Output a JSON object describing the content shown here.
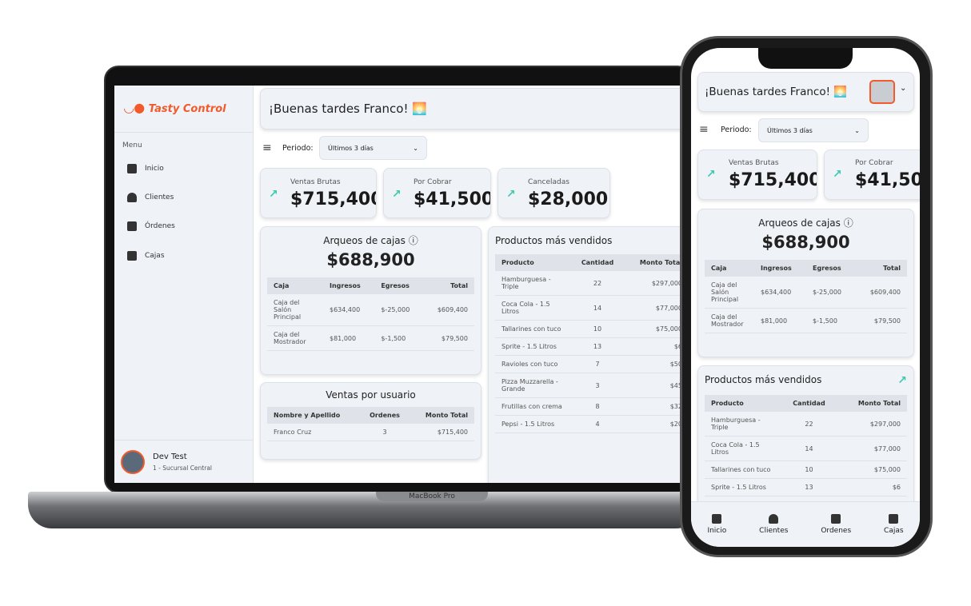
{
  "app": {
    "brand": "Tasty Control",
    "greeting": "¡Buenas tardes Franco! 🌅",
    "accent": "#f25a2b",
    "trend_color": "#3cc9b0"
  },
  "sidebar": {
    "menu_label": "Menu",
    "items": [
      {
        "label": "Inicio",
        "icon": "dashboard-icon"
      },
      {
        "label": "Clientes",
        "icon": "person-icon"
      },
      {
        "label": "Órdenes",
        "icon": "orders-icon"
      },
      {
        "label": "Cajas",
        "icon": "cash-register-icon"
      }
    ],
    "user": {
      "name": "Dev Test",
      "branch": "1 - Sucursal Central"
    }
  },
  "filter": {
    "label": "Periodo:",
    "value": "Últimos 3 días"
  },
  "stats": [
    {
      "label": "Ventas Brutas",
      "value": "$715,400"
    },
    {
      "label": "Por Cobrar",
      "value": "$41,500"
    },
    {
      "label": "Canceladas",
      "value": "$28,000"
    }
  ],
  "arqueos": {
    "title": "Arqueos de cajas",
    "total": "$688,900",
    "headers": [
      "Caja",
      "Ingresos",
      "Egresos",
      "Total"
    ],
    "rows": [
      [
        "Caja del Salón Principal",
        "$634,400",
        "$-25,000",
        "$609,400"
      ],
      [
        "Caja del Mostrador",
        "$81,000",
        "$-1,500",
        "$79,500"
      ]
    ]
  },
  "ventas_usuario": {
    "title": "Ventas por usuario",
    "headers": [
      "Nombre y Apellido",
      "Ordenes",
      "Monto Total"
    ],
    "rows": [
      [
        "Franco Cruz",
        "3",
        "$715,400"
      ]
    ]
  },
  "productos": {
    "title": "Productos más vendidos",
    "headers": [
      "Producto",
      "Cantidad",
      "Monto Total"
    ],
    "rows": [
      [
        "Hamburguesa - Triple",
        "22",
        "$297,000"
      ],
      [
        "Coca Cola - 1.5 Litros",
        "14",
        "$77,000"
      ],
      [
        "Tallarines con tuco",
        "10",
        "$75,000"
      ],
      [
        "Sprite - 1.5 Litros",
        "13",
        "$6"
      ],
      [
        "Ravioles con tuco",
        "7",
        "$50"
      ],
      [
        "Pizza Muzzarella - Grande",
        "3",
        "$45"
      ],
      [
        "Frutillas con crema",
        "8",
        "$32"
      ],
      [
        "Pepsi - 1.5 Litros",
        "4",
        "$20"
      ]
    ]
  },
  "laptop_label": "MacBook Pro",
  "bottom_nav": [
    {
      "label": "Inicio"
    },
    {
      "label": "Clientes"
    },
    {
      "label": "Ordenes"
    },
    {
      "label": "Cajas"
    }
  ]
}
